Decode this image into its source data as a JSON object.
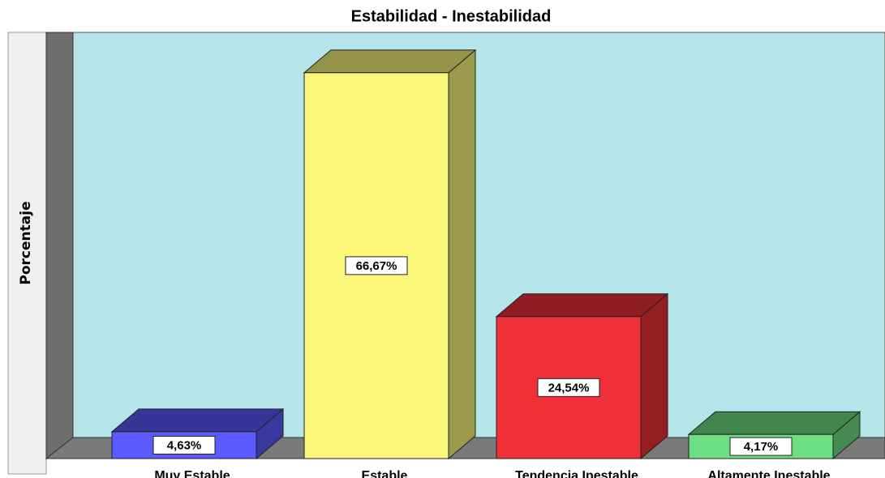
{
  "chart_data": {
    "type": "bar3d",
    "title": "Estabilidad - Inestabilidad",
    "ylabel": "Porcentaje",
    "categories": [
      "Muy Estable",
      "Estable",
      "Tendencia Inestable",
      "Altamente Inestable"
    ],
    "values": [
      4.63,
      66.67,
      24.54,
      4.17
    ],
    "value_labels": [
      "4,63%",
      "66,67%",
      "24,54%",
      "4,17%"
    ],
    "colors": [
      "#5a5aff",
      "#faf77a",
      "#f03039",
      "#6ede82"
    ],
    "ylim": [
      0,
      70
    ]
  }
}
